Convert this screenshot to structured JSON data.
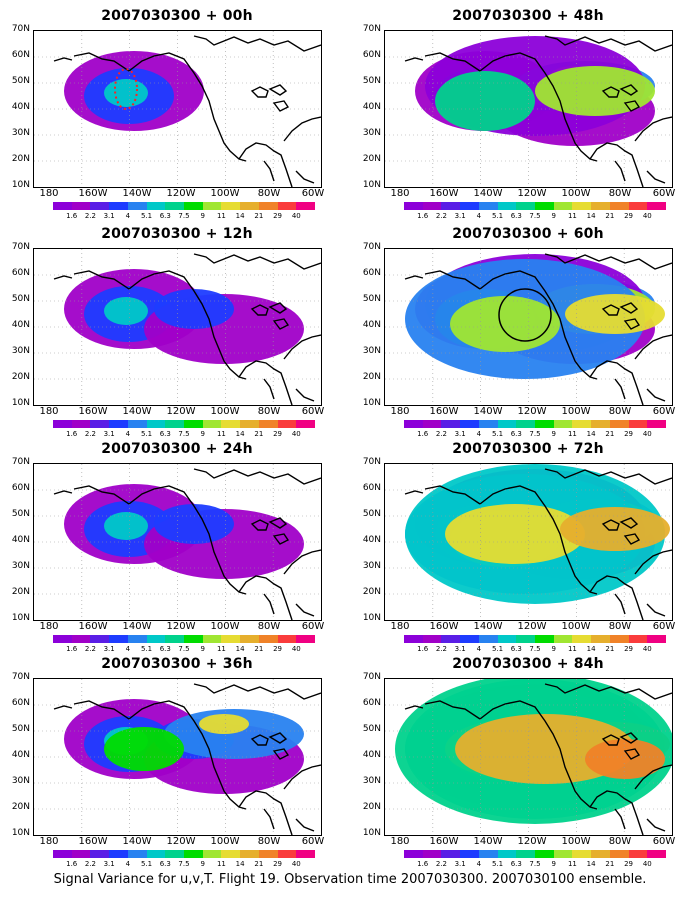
{
  "caption": "Signal Variance for u,v,T. Flight 19. Observation time 2007030300. 2007030100 ensemble.",
  "lat_ticks": [
    "70N",
    "60N",
    "50N",
    "40N",
    "30N",
    "20N",
    "10N"
  ],
  "lon_ticks": [
    "180",
    "160W",
    "140W",
    "120W",
    "100W",
    "80W",
    "60W"
  ],
  "colorbar": {
    "labels": [
      "1.6",
      "2.2",
      "3.1",
      "4",
      "5.1",
      "6.3",
      "7.5",
      "9",
      "11",
      "14",
      "21",
      "29",
      "40"
    ],
    "colors": [
      "#8c00d9",
      "#a000c8",
      "#5a1ee6",
      "#1e3cff",
      "#2882f0",
      "#00c8c8",
      "#00d28c",
      "#00dc00",
      "#a0e632",
      "#e6dc32",
      "#e6af2d",
      "#f08228",
      "#fa3c3c",
      "#f00082"
    ]
  },
  "panels": [
    {
      "title": "2007030300 + 00h",
      "col": 0,
      "row": 0,
      "level": 1,
      "marker": "red-dotted-ellipse"
    },
    {
      "title": "2007030300 + 12h",
      "col": 0,
      "row": 1,
      "level": 2
    },
    {
      "title": "2007030300 + 24h",
      "col": 0,
      "row": 2,
      "level": 3
    },
    {
      "title": "2007030300 + 36h",
      "col": 0,
      "row": 3,
      "level": 4
    },
    {
      "title": "2007030300 + 48h",
      "col": 1,
      "row": 0,
      "level": 5
    },
    {
      "title": "2007030300 + 60h",
      "col": 1,
      "row": 1,
      "level": 6,
      "marker": "black-circle"
    },
    {
      "title": "2007030300 + 72h",
      "col": 1,
      "row": 2,
      "level": 7
    },
    {
      "title": "2007030300 + 84h",
      "col": 1,
      "row": 3,
      "level": 8
    }
  ]
}
